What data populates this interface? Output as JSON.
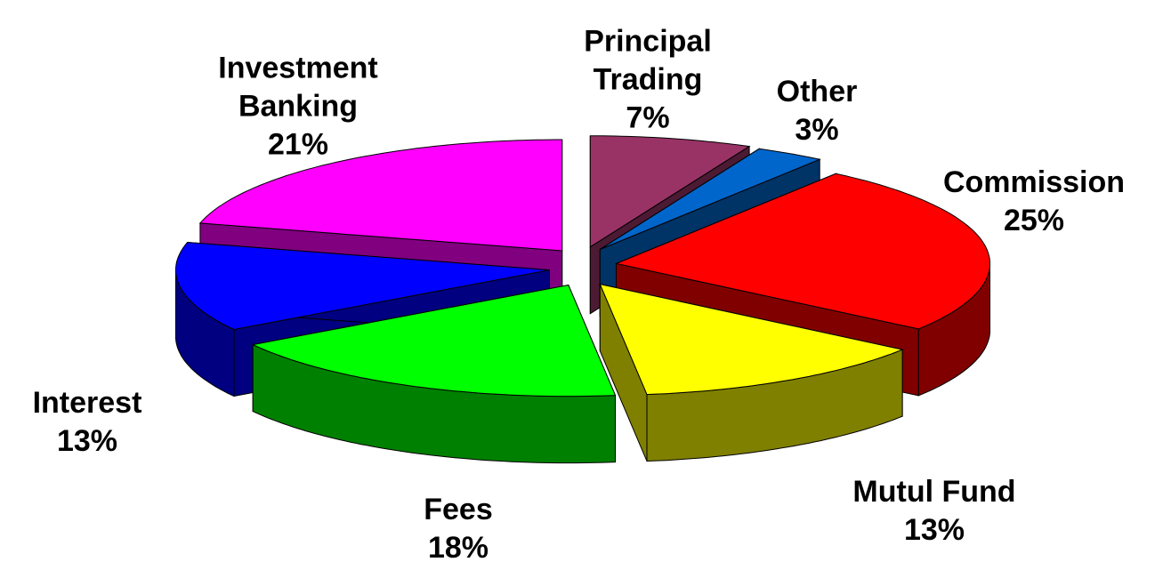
{
  "chart_data": {
    "type": "pie",
    "categories": [
      "Commission",
      "Mutul Fund",
      "Fees",
      "Interest",
      "Investment Banking",
      "Principal Trading",
      "Other"
    ],
    "values": [
      25,
      13,
      18,
      13,
      21,
      7,
      3
    ],
    "value_labels": [
      "25%",
      "13%",
      "18%",
      "13%",
      "21%",
      "7%",
      "3%"
    ],
    "colors": [
      "#ff0000",
      "#ffff00",
      "#00ff00",
      "#0000ff",
      "#ff00ff",
      "#993366",
      "#0066cc"
    ],
    "start_angle": 36,
    "exploded": true,
    "three_d": true
  }
}
